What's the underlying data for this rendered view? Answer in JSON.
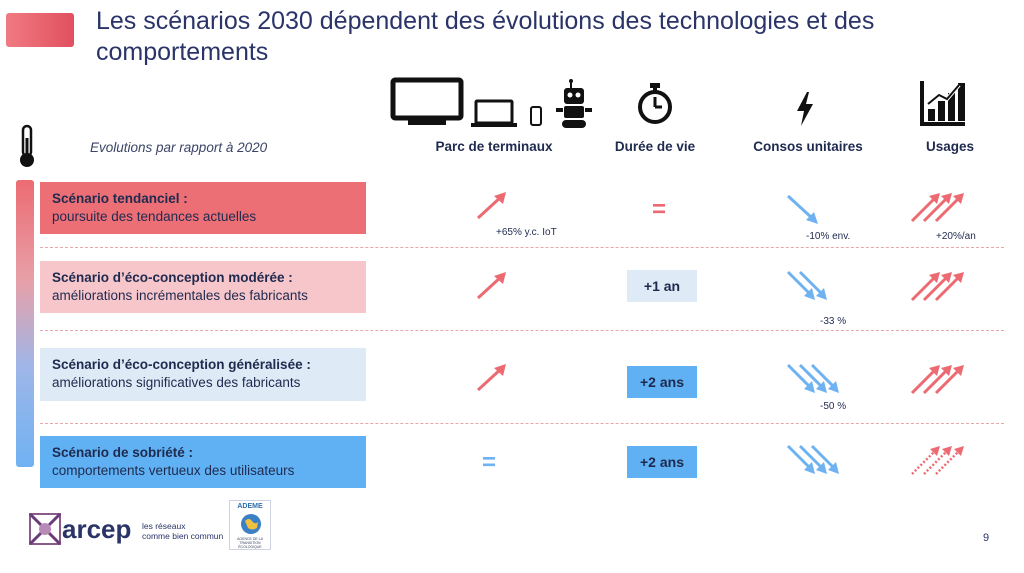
{
  "slide": {
    "title": "Les scénarios 2030 dépendent des évolutions des technologies et des comportements",
    "subtitle": "Evolutions par rapport à 2020",
    "page_number": "9"
  },
  "columns": [
    {
      "label": "Parc de terminaux",
      "icon": "devices-icon"
    },
    {
      "label": "Durée de vie",
      "icon": "stopwatch-icon"
    },
    {
      "label": "Consos unitaires",
      "icon": "lightning-icon"
    },
    {
      "label": "Usages",
      "icon": "bar-chart-icon"
    }
  ],
  "scenarios": [
    {
      "title": "Scénario tendanciel  :",
      "desc": "poursuite des tendances actuelles",
      "fleet": "up",
      "lifetime": "=",
      "consumption": "1 down",
      "usage": "3 up"
    },
    {
      "title": "Scénario d’éco-conception modérée  :",
      "desc": "améliorations incrémentales des fabricants",
      "fleet": "up",
      "lifetime": "+1 an",
      "consumption": "2 down",
      "usage": "3 up"
    },
    {
      "title": "Scénario d’éco-conception généralisée :",
      "desc": "améliorations significatives des fabricants",
      "fleet": "up",
      "lifetime": "+2 ans",
      "consumption": "3 down",
      "usage": "3 up"
    },
    {
      "title": "Scénario de sobriété :",
      "desc": "comportements vertueux des utilisateurs",
      "fleet": "=",
      "lifetime": "+2 ans",
      "consumption": "3 down",
      "usage": "3 up dotted"
    }
  ],
  "notes": {
    "fleet_s1": "+65% y.c. IoT",
    "cons_s1": "-10% env.",
    "usage_s1": "+20%/an",
    "cons_s2": "-33 %",
    "cons_s3": "-50 %"
  },
  "footer": {
    "logo_word": "arcep",
    "logo_tagline_1": "les réseaux",
    "logo_tagline_2": "comme bien commun",
    "ademe_name": "ADEME",
    "ademe_sub": "AGENCE DE LA TRANSITION ÉCOLOGIQUE"
  },
  "colors": {
    "up_red": "#ec6b72",
    "down_blue": "#6fb2f2",
    "title_navy": "#2a3468"
  }
}
